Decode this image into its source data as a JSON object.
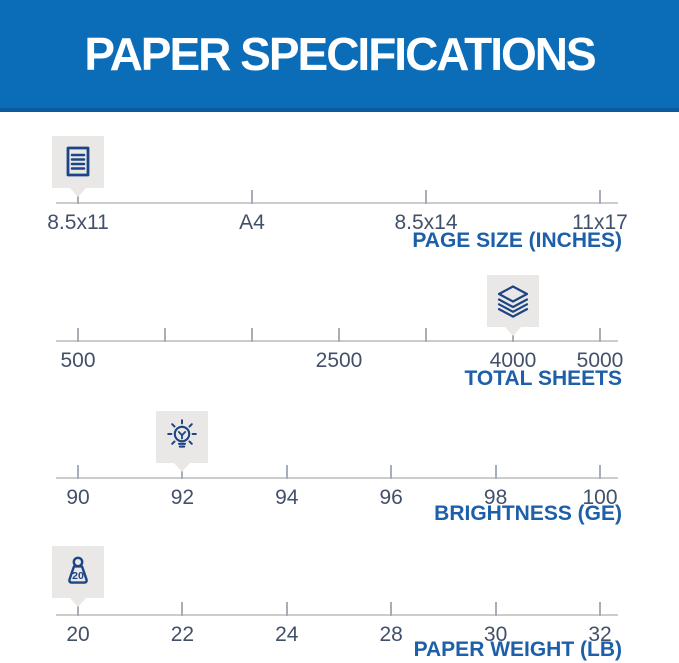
{
  "header": {
    "title": "PAPER SPECIFICATIONS"
  },
  "colors": {
    "header_bg": "#0b6cb8",
    "header_bg_dark_edge": "#0a5c9e",
    "header_text": "#ffffff",
    "scale_title_blue": "#1d5fa8",
    "tick_label_navy": "#42506a",
    "icon_navy": "#1d4484",
    "badge_gray": "#e9e8e6",
    "axis_line_gray": "#cbcccc",
    "tick_gray": "#a7aeb9"
  },
  "chart_data": [
    {
      "type": "scale",
      "title": "PAGE SIZE (INCHES)",
      "icon": "document-icon",
      "ticks": [
        "8.5x11",
        "A4",
        "8.5x14",
        "11x17"
      ],
      "marker_index": 0,
      "selected": "8.5x11"
    },
    {
      "type": "scale",
      "title": "TOTAL SHEETS",
      "icon": "sheets-icon",
      "ticks": [
        "500",
        "",
        "",
        "2500",
        "",
        "4000",
        "5000"
      ],
      "marker_index": 5,
      "selected": "4000"
    },
    {
      "type": "scale",
      "title": "BRIGHTNESS (GE)",
      "icon": "lightbulb-icon",
      "ticks": [
        "90",
        "92",
        "94",
        "96",
        "98",
        "100"
      ],
      "marker_index": 1,
      "selected": "92"
    },
    {
      "type": "scale",
      "title": "PAPER WEIGHT (LB)",
      "icon": "weight-icon",
      "icon_text": "20",
      "ticks": [
        "20",
        "22",
        "24",
        "28",
        "30",
        "32"
      ],
      "marker_index": 0,
      "selected": "20"
    }
  ]
}
